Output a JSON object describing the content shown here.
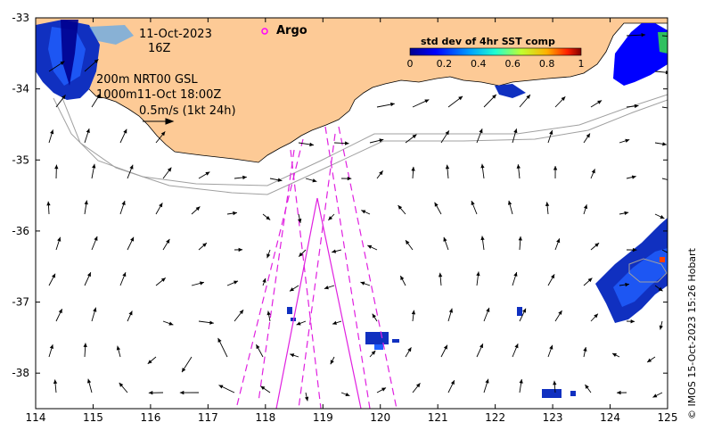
{
  "annotations": {
    "date": "11-Oct-2023",
    "hour": "16Z",
    "isobath_line1": "200m  NRT00 GSL",
    "isobath_line2": "1000m11-Oct 18:00Z",
    "scale_vector": "0.5m/s (1kt 24h)",
    "argo_label": "Argo"
  },
  "colorbar": {
    "title": "std dev of 4hr SST comp",
    "ticks": [
      "0",
      "0.2",
      "0.4",
      "0.6",
      "0.8",
      "1"
    ],
    "range": [
      0,
      1
    ]
  },
  "axes": {
    "lon_ticks": [
      "114",
      "115",
      "116",
      "117",
      "118",
      "119",
      "120",
      "121",
      "122",
      "123",
      "124",
      "125"
    ],
    "lat_ticks": [
      "-33",
      "-34",
      "-35",
      "-36",
      "-37",
      "-38"
    ],
    "lon_range": [
      114,
      125
    ],
    "lat_range": [
      -38.5,
      -33
    ]
  },
  "credit": "© IMOS 15-Oct-2023 15:26 Hobart",
  "colors": {
    "land": "#fdca96",
    "tracks": "#e020e0",
    "isobath": "#a0a0a0",
    "argo": "#ff00ff"
  }
}
